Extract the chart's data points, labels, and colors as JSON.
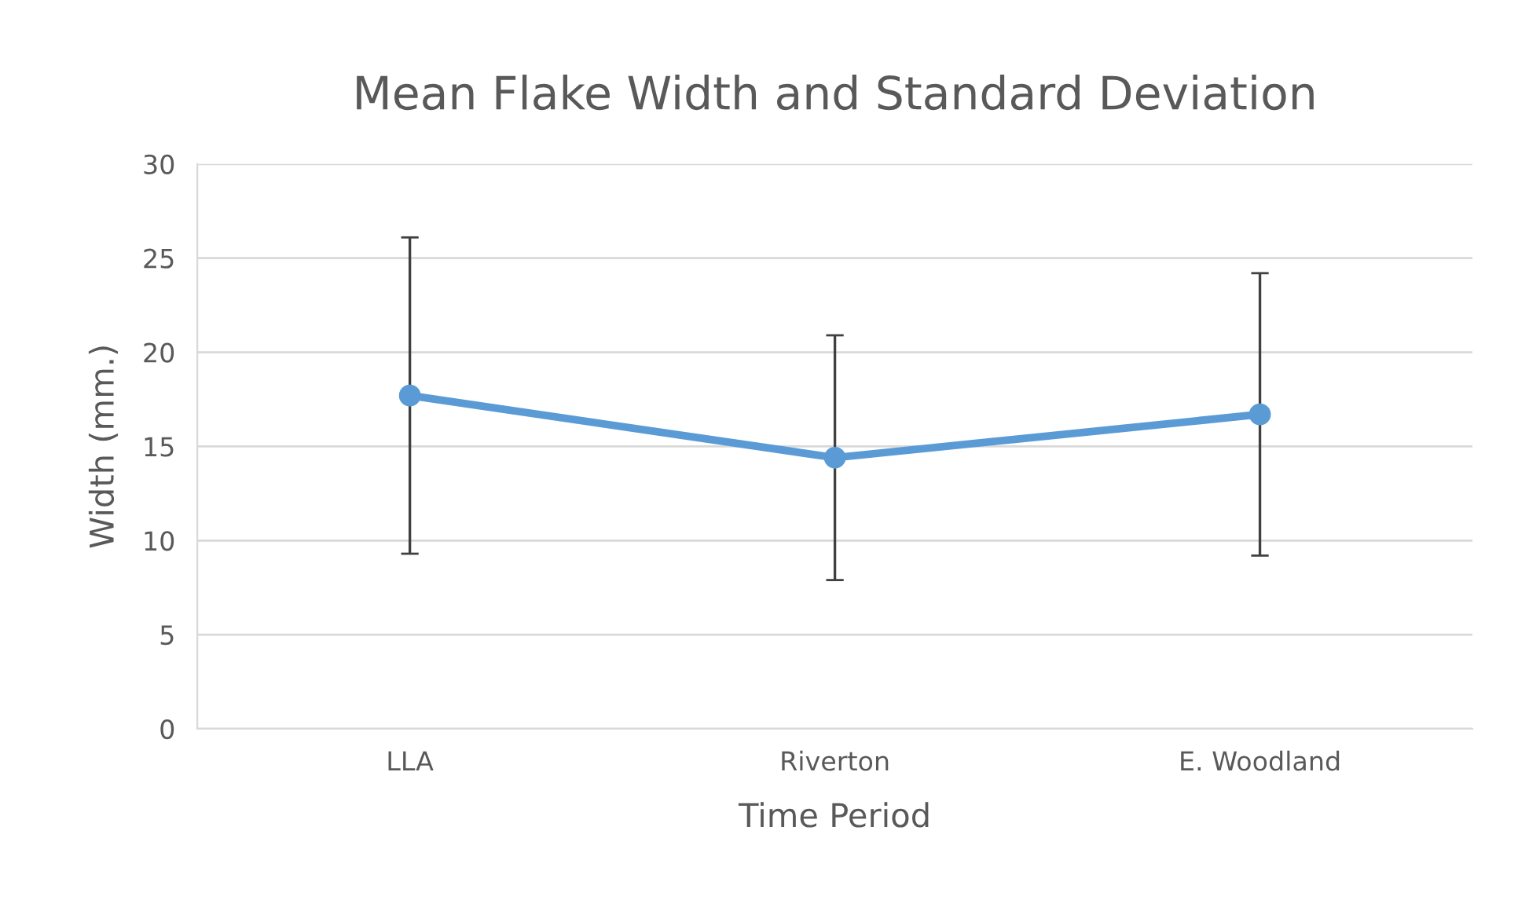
{
  "chart_data": {
    "type": "line",
    "title": "Mean Flake Width and Standard Deviation",
    "xlabel": "Time Period",
    "ylabel": "Width (mm.)",
    "categories": [
      "LLA",
      "Riverton",
      "E. Woodland"
    ],
    "series": [
      {
        "color": "#5b9bd5",
        "values": [
          17.7,
          14.4,
          16.7
        ],
        "errors": [
          8.4,
          6.5,
          7.5
        ]
      }
    ],
    "ylim": [
      0,
      30
    ],
    "yticks": [
      0,
      5,
      10,
      15,
      20,
      25,
      30
    ],
    "grid": "y",
    "marker": "circle",
    "line_style": "solid"
  }
}
